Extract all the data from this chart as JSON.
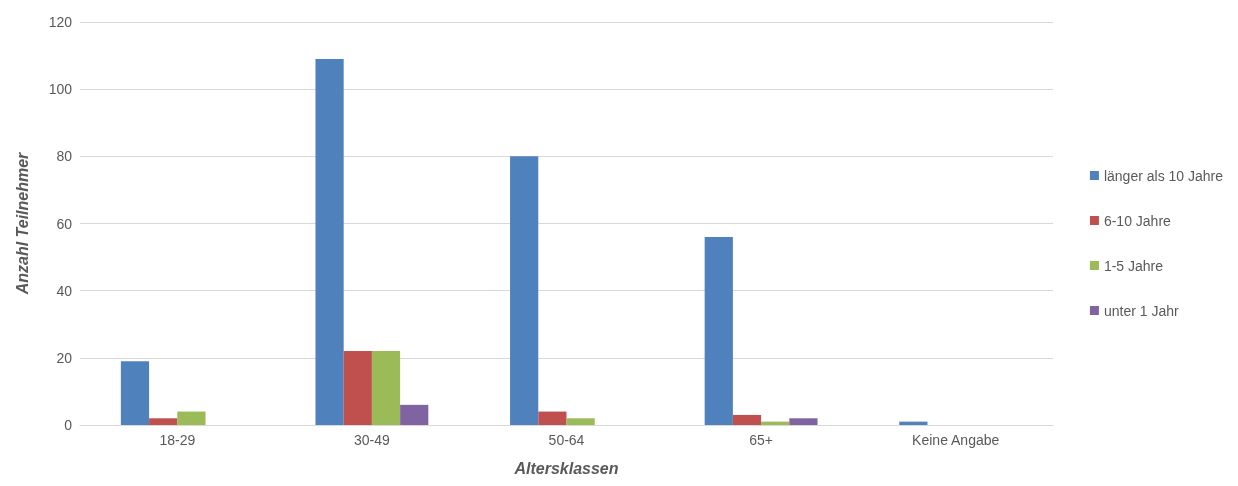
{
  "chart_data": {
    "type": "bar",
    "xlabel": "Altersklassen",
    "ylabel": "Anzahl Teilnehmer",
    "categories": [
      "18-29",
      "30-49",
      "50-64",
      "65+",
      "Keine Angabe"
    ],
    "series": [
      {
        "name": "länger als 10 Jahre",
        "color": "#4f81bd",
        "values": [
          19,
          109,
          80,
          56,
          1
        ]
      },
      {
        "name": "6-10 Jahre",
        "color": "#c0504d",
        "values": [
          2,
          22,
          4,
          3,
          0
        ]
      },
      {
        "name": "1-5 Jahre",
        "color": "#9bbb59",
        "values": [
          4,
          22,
          2,
          1,
          0
        ]
      },
      {
        "name": "unter 1 Jahr",
        "color": "#8064a2",
        "values": [
          0,
          6,
          0,
          2,
          0
        ]
      }
    ],
    "ylim": [
      0,
      120
    ],
    "yticks": [
      0,
      20,
      40,
      60,
      80,
      100,
      120
    ],
    "grid": "y",
    "legend": "right"
  }
}
